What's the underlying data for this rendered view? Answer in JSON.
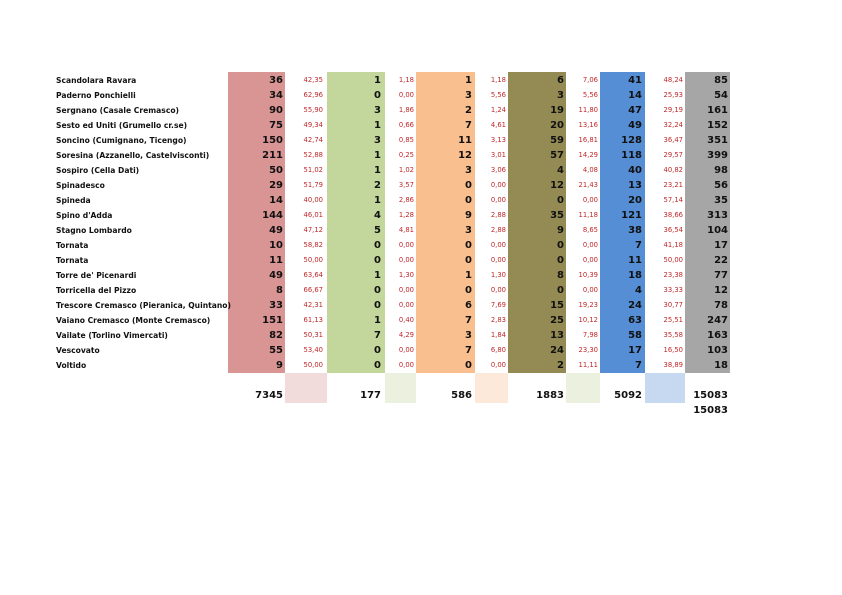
{
  "table": {
    "rows": [
      [
        "Scandolara Ravara",
        36,
        "42,35",
        1,
        "1,18",
        1,
        "1,18",
        6,
        "7,06",
        41,
        "48,24",
        85
      ],
      [
        "Paderno Ponchielli",
        34,
        "62,96",
        0,
        "0,00",
        3,
        "5,56",
        3,
        "5,56",
        14,
        "25,93",
        54
      ],
      [
        "Sergnano (Casale Cremasco)",
        90,
        "55,90",
        3,
        "1,86",
        2,
        "1,24",
        19,
        "11,80",
        47,
        "29,19",
        161
      ],
      [
        "Sesto ed Uniti (Grumello cr.se)",
        75,
        "49,34",
        1,
        "0,66",
        7,
        "4,61",
        20,
        "13,16",
        49,
        "32,24",
        152
      ],
      [
        "Soncino (Cumignano, Ticengo)",
        150,
        "42,74",
        3,
        "0,85",
        11,
        "3,13",
        59,
        "16,81",
        128,
        "36,47",
        351
      ],
      [
        "Soresina (Azzanello, Castelvisconti)",
        211,
        "52,88",
        1,
        "0,25",
        12,
        "3,01",
        57,
        "14,29",
        118,
        "29,57",
        399
      ],
      [
        "Sospiro (Cella Dati)",
        50,
        "51,02",
        1,
        "1,02",
        3,
        "3,06",
        4,
        "4,08",
        40,
        "40,82",
        98
      ],
      [
        "Spinadesco",
        29,
        "51,79",
        2,
        "3,57",
        0,
        "0,00",
        12,
        "21,43",
        13,
        "23,21",
        56
      ],
      [
        "Spineda",
        14,
        "40,00",
        1,
        "2,86",
        0,
        "0,00",
        0,
        "0,00",
        20,
        "57,14",
        35
      ],
      [
        "Spino d'Adda",
        144,
        "46,01",
        4,
        "1,28",
        9,
        "2,88",
        35,
        "11,18",
        121,
        "38,66",
        313
      ],
      [
        "Stagno Lombardo",
        49,
        "47,12",
        5,
        "4,81",
        3,
        "2,88",
        9,
        "8,65",
        38,
        "36,54",
        104
      ],
      [
        "Tornata",
        10,
        "58,82",
        0,
        "0,00",
        0,
        "0,00",
        0,
        "0,00",
        7,
        "41,18",
        17
      ],
      [
        "Tornata",
        11,
        "50,00",
        0,
        "0,00",
        0,
        "0,00",
        0,
        "0,00",
        11,
        "50,00",
        22
      ],
      [
        "Torre de' Picenardi",
        49,
        "63,64",
        1,
        "1,30",
        1,
        "1,30",
        8,
        "10,39",
        18,
        "23,38",
        77
      ],
      [
        "Torricella del Pizzo",
        8,
        "66,67",
        0,
        "0,00",
        0,
        "0,00",
        0,
        "0,00",
        4,
        "33,33",
        12
      ],
      [
        "Trescore Cremasco (Pieranica, Quintano)",
        33,
        "42,31",
        0,
        "0,00",
        6,
        "7,69",
        15,
        "19,23",
        24,
        "30,77",
        78
      ],
      [
        "Vaiano Cremasco (Monte Cremasco)",
        151,
        "61,13",
        1,
        "0,40",
        7,
        "2,83",
        25,
        "10,12",
        63,
        "25,51",
        247
      ],
      [
        "Vailate (Torlino Vimercati)",
        82,
        "50,31",
        7,
        "4,29",
        3,
        "1,84",
        13,
        "7,98",
        58,
        "35,58",
        163
      ],
      [
        "Vescovato",
        55,
        "53,40",
        0,
        "0,00",
        7,
        "6,80",
        24,
        "23,30",
        17,
        "16,50",
        103
      ],
      [
        "Voltido",
        9,
        "50,00",
        0,
        "0,00",
        0,
        "0,00",
        2,
        "11,11",
        7,
        "38,89",
        18
      ]
    ],
    "totals": [
      7345,
      177,
      586,
      1883,
      5092,
      15083
    ],
    "grand_total": 15083
  }
}
